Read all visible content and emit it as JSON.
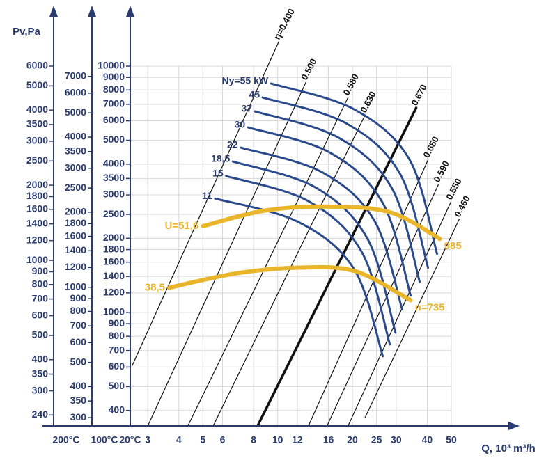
{
  "chart_data": {
    "type": "fan-chart",
    "y_title": "Pv,Pa",
    "x_title": "Q, 10³ m³/h",
    "log_x": true,
    "log_y": true,
    "grid": true,
    "xlim": [
      2.55,
      50
    ],
    "xticks": [
      3,
      4,
      5,
      6,
      8,
      10,
      12,
      16,
      20,
      25,
      30,
      40,
      50
    ],
    "y_axes": [
      {
        "label": "200°C",
        "ylim": [
          217,
          6000
        ],
        "yticks": [
          6000,
          5000,
          4000,
          3500,
          3000,
          2500,
          2000,
          1800,
          1600,
          1400,
          1200,
          1000,
          900,
          800,
          700,
          600,
          500,
          400,
          350,
          300,
          240
        ]
      },
      {
        "label": "100°C",
        "ylim": [
          278,
          7700
        ],
        "yticks": [
          7000,
          6000,
          5000,
          4000,
          3500,
          3000,
          2500,
          2000,
          1800,
          1600,
          1400,
          1200,
          1000,
          900,
          800,
          700,
          600,
          500,
          400,
          350,
          300
        ]
      },
      {
        "label": "20°C",
        "ylim": [
          346,
          10000
        ],
        "yticks": [
          10000,
          9000,
          8000,
          7000,
          6000,
          5000,
          4000,
          3500,
          3000,
          2500,
          2000,
          1800,
          1600,
          1400,
          1200,
          1000,
          900,
          800,
          700,
          600,
          500,
          400
        ]
      }
    ],
    "efficiency_lines": {
      "color": "#111111",
      "series": [
        {
          "name": "η=0.400",
          "x": [
            2.6,
            10.1
          ],
          "values": [
            610,
            12560
          ]
        },
        {
          "name": "0.500",
          "x": [
            3.0,
            13.0
          ],
          "values": [
            346,
            8610
          ]
        },
        {
          "name": "0.580",
          "x": [
            4.35,
            19.2
          ],
          "values": [
            346,
            7460
          ]
        },
        {
          "name": "0.630",
          "x": [
            5.5,
            22.5
          ],
          "values": [
            346,
            6340
          ]
        },
        {
          "name": "0.670",
          "bold": true,
          "x": [
            8.3,
            36.1
          ],
          "values": [
            346,
            6770
          ]
        },
        {
          "name": "0.650",
          "x": [
            13.3,
            40.3
          ],
          "values": [
            346,
            4160
          ]
        },
        {
          "name": "0.590",
          "x": [
            15.8,
            44.4
          ],
          "values": [
            346,
            3310
          ]
        },
        {
          "name": "0.550",
          "x": [
            19.2,
            49.8
          ],
          "values": [
            346,
            2810
          ]
        },
        {
          "name": "0.460",
          "x": [
            22.5,
            53.8
          ],
          "values": [
            375,
            2390
          ]
        }
      ]
    },
    "power_curves": {
      "color": "#2b4a8c",
      "series": [
        {
          "name": "Ny=55 kW",
          "x": [
            9.4,
            20.3,
            34.0,
            43.8
          ],
          "values": [
            8500,
            6680,
            4160,
            1730
          ]
        },
        {
          "name": "45",
          "x": [
            8.7,
            18.8,
            31.1,
            40.3
          ],
          "values": [
            7460,
            5870,
            3650,
            1520
          ]
        },
        {
          "name": "37",
          "x": [
            8.1,
            17.4,
            28.8,
            37.3
          ],
          "values": [
            6550,
            5150,
            3200,
            1330
          ]
        },
        {
          "name": "30",
          "x": [
            7.6,
            16.2,
            26.5,
            34.3
          ],
          "values": [
            5640,
            4460,
            2780,
            1170
          ]
        },
        {
          "name": "22",
          "x": [
            7.1,
            15.0,
            24.5,
            31.7
          ],
          "values": [
            4670,
            3720,
            2360,
            1030
          ]
        },
        {
          "name": "18,5",
          "x": [
            6.6,
            14.1,
            23.0,
            29.8
          ],
          "values": [
            4100,
            3230,
            1990,
            828
          ]
        },
        {
          "name": "15",
          "x": [
            6.2,
            13.3,
            21.8,
            28.3
          ],
          "values": [
            3580,
            2830,
            1760,
            741
          ]
        },
        {
          "name": "11",
          "x": [
            5.6,
            12.1,
            20.3,
            26.5
          ],
          "values": [
            2900,
            2330,
            1500,
            664
          ]
        }
      ]
    },
    "speed_curves": {
      "color": "#e9b52a",
      "series": [
        {
          "name": "985",
          "start_label": "U=51,6",
          "x": [
            5.0,
            8.85,
            15.8,
            28.3,
            45.0
          ],
          "values": [
            2240,
            2590,
            2690,
            2550,
            1990
          ]
        },
        {
          "name": "n=735",
          "start_label": "38,5",
          "x": [
            3.66,
            6.8,
            12.2,
            20.5,
            34.3
          ],
          "values": [
            1260,
            1440,
            1520,
            1470,
            1120
          ]
        }
      ]
    }
  }
}
